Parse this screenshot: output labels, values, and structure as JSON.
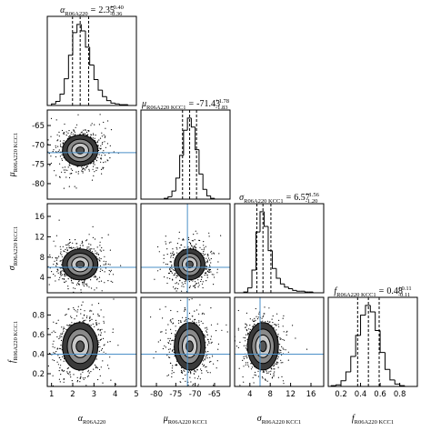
{
  "chart_data": {
    "type": "corner",
    "truth_color": "#4a8fc7",
    "parameters": [
      {
        "label": {
          "symbol": "α",
          "subscript": "R06A220"
        },
        "title": {
          "symbol": "α",
          "subscript": "R06A220",
          "equals": "=",
          "value": 2.35,
          "upper": "+0.40",
          "lower": "-0.36"
        },
        "xlim": [
          0.8,
          5.0
        ],
        "xticks": [
          1,
          2,
          3,
          4,
          5
        ],
        "bins": [
          1.0,
          1.2,
          1.4,
          1.6,
          1.8,
          2.0,
          2.2,
          2.4,
          2.6,
          2.8,
          3.0,
          3.2,
          3.4,
          3.6,
          3.8,
          4.0,
          4.2,
          4.4,
          4.6,
          4.8,
          5.0
        ],
        "counts": [
          2,
          5,
          14,
          33,
          62,
          90,
          100,
          92,
          72,
          50,
          32,
          19,
          11,
          6,
          3,
          2,
          1,
          1,
          0,
          0
        ],
        "ylim": [
          0,
          110
        ],
        "quantiles": [
          1.99,
          2.35,
          2.75
        ]
      },
      {
        "label": {
          "symbol": "μ",
          "subscript": "R06A220 KCC1"
        },
        "title": {
          "symbol": "μ",
          "subscript": "R06A220 KCC1",
          "equals": "=",
          "value": -71.43,
          "upper": "+1.78",
          "lower": "-1.83"
        },
        "xlim": [
          -84,
          -61
        ],
        "xticks": [
          -80,
          -75,
          -70,
          -65
        ],
        "yticks": [
          -80,
          -75,
          -70,
          -65
        ],
        "bins": [
          -80,
          -79,
          -78,
          -77,
          -76,
          -75,
          -74,
          -73,
          -72,
          -71,
          -70,
          -69,
          -68,
          -67,
          -66,
          -65,
          -64,
          -63
        ],
        "counts": [
          0,
          0,
          1,
          3,
          10,
          26,
          54,
          85,
          100,
          89,
          61,
          31,
          12,
          4,
          1,
          0,
          0
        ],
        "ylim": [
          0,
          110
        ],
        "quantiles": [
          -73.26,
          -71.43,
          -69.65
        ],
        "truth": -72
      },
      {
        "label": {
          "symbol": "σ",
          "subscript": "R06A220 KCC1"
        },
        "title": {
          "symbol": "σ",
          "subscript": "R06A220 KCC1",
          "equals": "=",
          "value": 6.57,
          "upper": "+1.56",
          "lower": "-1.20"
        },
        "xlim": [
          1,
          18.5
        ],
        "xticks": [
          4,
          8,
          12,
          16
        ],
        "yticks": [
          4,
          8,
          12,
          16
        ],
        "bins": [
          2,
          2.8,
          3.6,
          4.4,
          5.2,
          6,
          6.8,
          7.6,
          8.4,
          9.2,
          10,
          10.8,
          11.6,
          12.4,
          13.2,
          14,
          14.8,
          15.6,
          16.4,
          17.2,
          18
        ],
        "counts": [
          0,
          1,
          6,
          28,
          75,
          100,
          82,
          52,
          30,
          18,
          11,
          7,
          5,
          3,
          2,
          2,
          1,
          1,
          0,
          0
        ],
        "ylim": [
          0,
          110
        ],
        "quantiles": [
          5.37,
          6.57,
          8.13
        ],
        "truth": 6
      },
      {
        "label": {
          "symbol": "f",
          "subscript": "R06A220 KCC1"
        },
        "title": {
          "symbol": "f",
          "subscript": "R06A220 KCC1",
          "equals": "=",
          "value": 0.48,
          "upper": "+0.11",
          "lower": "-0.11"
        },
        "xlim": [
          0.07,
          0.98
        ],
        "xticks": [
          0.2,
          0.4,
          0.6,
          0.8
        ],
        "yticks": [
          0.2,
          0.4,
          0.6,
          0.8
        ],
        "bins": [
          0.1,
          0.15,
          0.2,
          0.25,
          0.3,
          0.35,
          0.4,
          0.45,
          0.5,
          0.55,
          0.6,
          0.65,
          0.7,
          0.75,
          0.8,
          0.85,
          0.9,
          0.95
        ],
        "counts": [
          1,
          2,
          7,
          18,
          37,
          63,
          88,
          100,
          92,
          69,
          42,
          21,
          8,
          3,
          1,
          0,
          0
        ],
        "ylim": [
          0,
          110
        ],
        "quantiles": [
          0.37,
          0.48,
          0.59
        ],
        "truth": 0.4
      }
    ]
  }
}
